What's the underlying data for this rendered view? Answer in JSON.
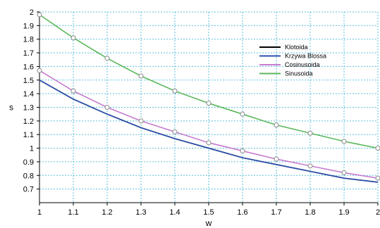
{
  "chart_data": {
    "type": "line",
    "xlabel": "w",
    "ylabel": "s",
    "xlim": [
      1,
      2
    ],
    "ylim": [
      0.6,
      2.0
    ],
    "grid": true,
    "legend_position": "top-right",
    "x": [
      1,
      1.1,
      1.2,
      1.3,
      1.4,
      1.5,
      1.6,
      1.7,
      1.8,
      1.9,
      2
    ],
    "x_tick_labels": [
      "1",
      "1.1",
      "1.2",
      "1.3",
      "1.4",
      "1.5",
      "1.6",
      "1.7",
      "1.8",
      "1.9",
      "2"
    ],
    "y_ticks": [
      0.7,
      0.8,
      0.9,
      1.0,
      1.1,
      1.2,
      1.3,
      1.4,
      1.5,
      1.6,
      1.7,
      1.8,
      1.9,
      2.0
    ],
    "y_tick_labels": [
      "0.7",
      "0.8",
      "0.9",
      "1",
      "1.1",
      "1.2",
      "1.3",
      "1.4",
      "1.5",
      "1.6",
      "1.7",
      "1.8",
      "1.9",
      "2"
    ],
    "series": [
      {
        "name": "Klotoida",
        "color": "#000000",
        "marker": "none",
        "values": [
          1.5,
          1.36,
          1.25,
          1.15,
          1.07,
          1.0,
          0.93,
          0.88,
          0.83,
          0.78,
          0.75
        ]
      },
      {
        "name": "Krzywa Blossa",
        "color": "#2b4fb0",
        "marker": "none",
        "values": [
          1.5,
          1.36,
          1.25,
          1.15,
          1.07,
          1.0,
          0.93,
          0.88,
          0.83,
          0.78,
          0.75
        ]
      },
      {
        "name": "Cosinusoida",
        "color": "#c77ccf",
        "marker": "circle",
        "values": [
          1.57,
          1.42,
          1.3,
          1.2,
          1.12,
          1.04,
          0.98,
          0.92,
          0.87,
          0.82,
          0.78
        ]
      },
      {
        "name": "Sinusoida",
        "color": "#5cb85c",
        "marker": "circle",
        "values": [
          1.98,
          1.81,
          1.66,
          1.53,
          1.42,
          1.33,
          1.25,
          1.17,
          1.11,
          1.05,
          1.0
        ]
      }
    ]
  }
}
